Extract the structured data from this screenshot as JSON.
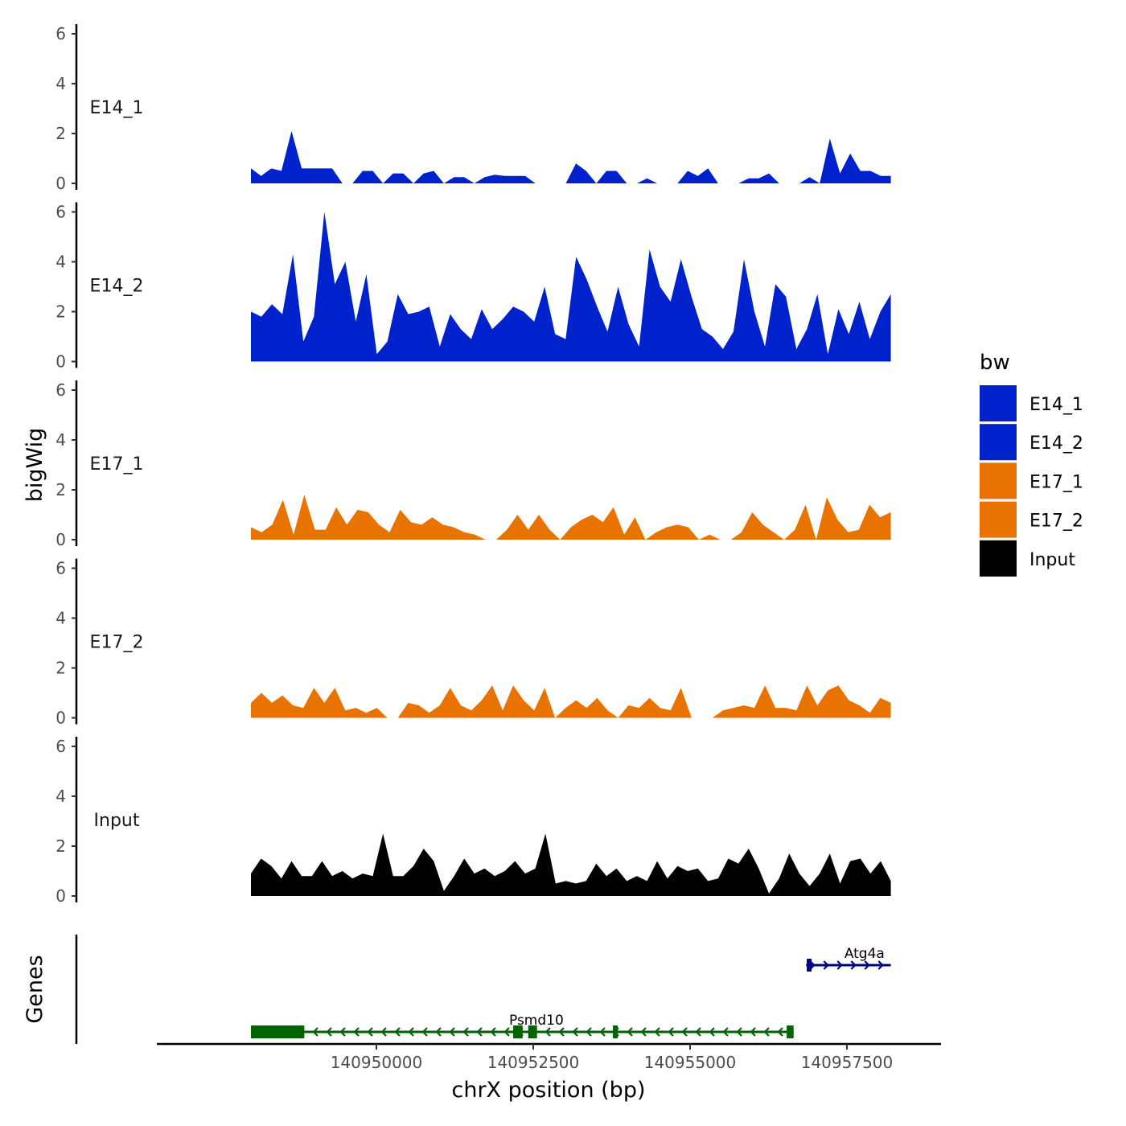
{
  "chart_data": {
    "type": "area",
    "xlabel": "chrX position (bp)",
    "ylabel": "bigWig",
    "genes_label": "Genes",
    "xlim": [
      140946500,
      140959000
    ],
    "ylim": [
      0,
      6.3
    ],
    "y_ticks": [
      0,
      2,
      4,
      6
    ],
    "x_ticks": [
      140950000,
      140952500,
      140955000,
      140957500
    ],
    "x_tick_labels": [
      "140950000",
      "140952500",
      "140955000",
      "140957500"
    ],
    "legend": {
      "title": "bw",
      "position": "right",
      "entries": [
        {
          "name": "E14_1",
          "color": "#0022cc"
        },
        {
          "name": "E14_2",
          "color": "#0022cc"
        },
        {
          "name": "E17_1",
          "color": "#e87300"
        },
        {
          "name": "E17_2",
          "color": "#e87300"
        },
        {
          "name": "Input",
          "color": "#000000"
        }
      ]
    },
    "x_start": 140948000,
    "x_end": 140958200,
    "series": [
      {
        "name": "E14_1",
        "color": "#0022cc",
        "values": [
          0.6,
          0.3,
          0.6,
          0.5,
          2.1,
          0.6,
          0.6,
          0.6,
          0.6,
          0,
          0,
          0.5,
          0.5,
          0,
          0.4,
          0.4,
          0,
          0.4,
          0.5,
          0,
          0.25,
          0.25,
          0,
          0.25,
          0.35,
          0.3,
          0.3,
          0.3,
          0,
          0,
          0,
          0,
          0.8,
          0.5,
          0,
          0.5,
          0.5,
          0,
          0,
          0.2,
          0,
          0,
          0,
          0.5,
          0.3,
          0.6,
          0,
          0,
          0,
          0.2,
          0.2,
          0.4,
          0,
          0,
          0,
          0.25,
          0,
          1.8,
          0.4,
          1.2,
          0.5,
          0.5,
          0.3,
          0.3
        ]
      },
      {
        "name": "E14_2",
        "color": "#0022cc",
        "values": [
          2.0,
          1.8,
          2.3,
          1.9,
          4.3,
          0.8,
          1.8,
          6.0,
          3.1,
          4.0,
          1.6,
          3.5,
          0.3,
          0.8,
          2.7,
          1.9,
          2.0,
          2.2,
          0.6,
          1.9,
          1.3,
          0.9,
          2.1,
          1.3,
          1.7,
          2.2,
          2.0,
          1.6,
          3.0,
          1.1,
          0.9,
          4.2,
          3.3,
          2.2,
          1.2,
          3.0,
          1.5,
          0.6,
          4.5,
          3.0,
          2.4,
          4.1,
          2.6,
          1.3,
          1.0,
          0.5,
          1.2,
          4.1,
          2.0,
          0.6,
          3.1,
          2.6,
          0.5,
          1.3,
          2.7,
          0.3,
          2.1,
          1.1,
          2.4,
          0.9,
          2.0,
          2.7
        ]
      },
      {
        "name": "E17_1",
        "color": "#e87300",
        "values": [
          0.5,
          0.3,
          0.6,
          1.6,
          0.2,
          1.8,
          0.4,
          0.4,
          1.3,
          0.6,
          1.2,
          1.1,
          0.6,
          0.3,
          1.2,
          0.7,
          0.6,
          0.9,
          0.6,
          0.5,
          0.3,
          0.2,
          0,
          0,
          0.4,
          1.0,
          0.4,
          1.0,
          0.4,
          0,
          0.5,
          0.8,
          1.0,
          0.7,
          1.3,
          0.2,
          0.9,
          0,
          0.3,
          0.5,
          0.6,
          0.5,
          0,
          0.2,
          0,
          0,
          0.3,
          1.1,
          0.6,
          0.3,
          0,
          0.4,
          1.4,
          0,
          1.7,
          0.8,
          0.3,
          0.4,
          1.4,
          0.9,
          1.1
        ]
      },
      {
        "name": "E17_2",
        "color": "#e87300",
        "values": [
          0.6,
          1.0,
          0.6,
          0.9,
          0.5,
          0.4,
          1.2,
          0.6,
          1.2,
          0.3,
          0.4,
          0.2,
          0.4,
          0,
          0,
          0.6,
          0.5,
          0.2,
          0.5,
          1.2,
          0.5,
          0.3,
          0.7,
          1.3,
          0.3,
          1.3,
          0.7,
          0.3,
          1.2,
          0,
          0.4,
          0.7,
          0.4,
          0.8,
          0.3,
          0,
          0.5,
          0.4,
          0.8,
          0.4,
          0.3,
          1.2,
          0,
          0,
          0,
          0.3,
          0.4,
          0.5,
          0.4,
          1.3,
          0.4,
          0.4,
          0.3,
          1.3,
          0.5,
          1.1,
          1.3,
          0.7,
          0.5,
          0.2,
          0.8,
          0.6
        ]
      },
      {
        "name": "Input",
        "color": "#000000",
        "values": [
          0.9,
          1.5,
          1.2,
          0.7,
          1.4,
          0.8,
          0.8,
          1.4,
          0.8,
          1.0,
          0.7,
          0.9,
          0.8,
          2.5,
          0.8,
          0.8,
          1.2,
          1.9,
          1.4,
          0.2,
          0.8,
          1.5,
          0.9,
          1.1,
          0.8,
          1.0,
          1.4,
          0.9,
          1.1,
          2.5,
          0.5,
          0.6,
          0.5,
          0.6,
          1.3,
          0.8,
          1.1,
          0.6,
          0.8,
          0.6,
          1.4,
          0.7,
          1.2,
          1.0,
          1.1,
          0.6,
          0.7,
          1.5,
          1.3,
          1.9,
          1.1,
          0.1,
          0.7,
          1.7,
          0.9,
          0.4,
          0.9,
          1.7,
          0.5,
          1.4,
          1.5,
          0.9,
          1.4,
          0.6
        ]
      }
    ],
    "genes": [
      {
        "name": "Psmd10",
        "strand": "-",
        "color": "#006400",
        "start": 140948000,
        "end": 140956650,
        "exons": [
          [
            140948000,
            140948850
          ],
          [
            140952180,
            140952330
          ],
          [
            140952420,
            140952560
          ],
          [
            140953770,
            140953830
          ],
          [
            140956540,
            140956650
          ]
        ]
      },
      {
        "name": "Atg4a",
        "strand": "+",
        "color": "#000080",
        "start": 140956850,
        "end": 140958200,
        "exons": [
          [
            140956860,
            140956930
          ]
        ]
      }
    ]
  }
}
